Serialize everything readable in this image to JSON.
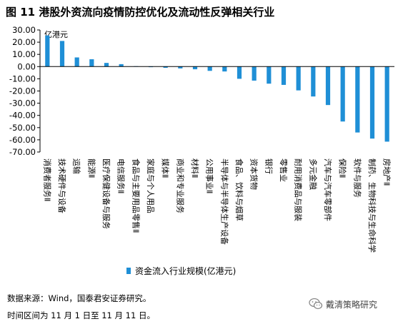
{
  "figure_title": "图 11 港股外资流向疫情防控优化及流动性反弹相关行业",
  "source_text": "数据来源：Wind，国泰君安证券研究。",
  "time_text": "时间区间为 11 月 1 日至 11 月 11 日。",
  "watermark_text": "戴清策略研究",
  "colors": {
    "bar": "#1f8fd6",
    "axis": "#000000"
  },
  "chart_data": {
    "type": "bar",
    "unit_label": "亿港元",
    "legend_label": "资金流入行业规模(亿港元)",
    "legend_position": "bottom",
    "ylim": [
      -70,
      30
    ],
    "yticks": [
      "30.00",
      "20.00",
      "10.00",
      "0.00",
      "-10.00",
      "-20.00",
      "-30.00",
      "-40.00",
      "-50.00",
      "-60.00",
      "-70.00"
    ],
    "grid": false,
    "categories": [
      "消费者服务Ⅱ",
      "技术硬件与设备",
      "运输",
      "能源Ⅱ",
      "医疗保健设备与服务",
      "电信服务Ⅱ",
      "食品与主要用品零售Ⅱ",
      "家庭与个人用品",
      "媒体Ⅱ",
      "商业和专业服务",
      "材料Ⅱ",
      "公用事业Ⅱ",
      "半导体与半导体生产设备",
      "食品、饮料与烟草",
      "资本货物",
      "银行",
      "零售业",
      "耐用消费品与服装",
      "多元金融",
      "汽车与汽车零部件",
      "保险Ⅱ",
      "软件与服务",
      "制药、生物科技与生命科学",
      "房地产Ⅱ"
    ],
    "values": [
      25.5,
      21.0,
      7.5,
      6.0,
      3.0,
      2.0,
      0.3,
      -0.3,
      -1.0,
      -1.5,
      -2.2,
      -3.5,
      -4.0,
      -10.0,
      -11.5,
      -14.0,
      -15.0,
      -19.5,
      -24.5,
      -31.5,
      -45.0,
      -54.0,
      -59.0,
      -61.5
    ]
  }
}
